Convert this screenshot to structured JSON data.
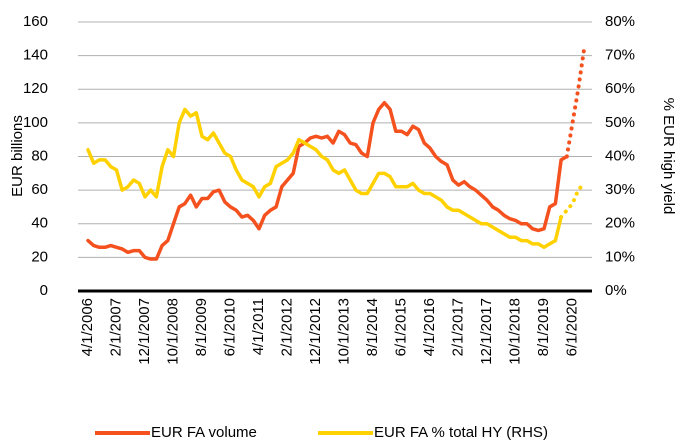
{
  "chart_data": {
    "type": "line",
    "y_label": "EUR billions",
    "y2_label": "% EUR high yield",
    "categories": [
      "4/1/2006",
      null,
      null,
      null,
      null,
      "2/1/2007",
      null,
      null,
      null,
      null,
      "12/1/2007",
      null,
      null,
      null,
      null,
      "10/1/2008",
      null,
      null,
      null,
      null,
      "8/1/2009",
      null,
      null,
      null,
      null,
      "6/1/2010",
      null,
      null,
      null,
      null,
      "4/1/2011",
      null,
      null,
      null,
      null,
      "2/1/2012",
      null,
      null,
      null,
      null,
      "12/1/2012",
      null,
      null,
      null,
      null,
      "10/1/2013",
      null,
      null,
      null,
      null,
      "8/1/2014",
      null,
      null,
      null,
      null,
      "6/1/2015",
      null,
      null,
      null,
      null,
      "4/1/2016",
      null,
      null,
      null,
      null,
      "2/1/2017",
      null,
      null,
      null,
      null,
      "12/1/2017",
      null,
      null,
      null,
      null,
      "10/1/2018",
      null,
      null,
      null,
      null,
      "8/1/2019",
      null,
      null,
      null,
      null,
      "6/1/2020",
      null,
      null
    ],
    "series": [
      {
        "name": "EUR FA volume",
        "color": "#f4511e",
        "dotted_from": 84,
        "values": [
          30,
          27,
          26,
          26,
          27,
          26,
          25,
          23,
          24,
          24,
          20,
          19,
          19,
          27,
          30,
          40,
          50,
          52,
          57,
          50,
          55,
          55,
          59,
          60,
          53,
          50,
          48,
          44,
          45,
          42,
          37,
          45,
          48,
          50,
          62,
          66,
          70,
          86,
          88,
          91,
          92,
          91,
          92,
          88,
          95,
          93,
          88,
          87,
          82,
          80,
          100,
          108,
          112,
          108,
          95,
          95,
          93,
          98,
          96,
          88,
          85,
          80,
          77,
          75,
          66,
          63,
          65,
          62,
          60,
          57,
          54,
          50,
          48,
          45,
          43,
          42,
          40,
          40,
          37,
          36,
          37,
          50,
          52,
          78,
          80,
          100,
          120,
          143
        ]
      },
      {
        "name": "EUR FA % total HY (RHS)",
        "color": "#ffd100",
        "axis": "y2",
        "dotted_from": 83,
        "values": [
          42,
          38,
          39,
          39,
          37,
          36,
          30,
          31,
          33,
          32,
          28,
          30,
          28,
          37,
          42,
          40,
          50,
          54,
          52,
          53,
          46,
          45,
          47,
          44,
          41,
          40,
          36,
          33,
          32,
          31,
          28,
          31,
          32,
          37,
          38,
          39,
          41,
          45,
          44,
          43,
          42,
          40,
          39,
          36,
          35,
          36,
          33,
          30,
          29,
          29,
          32,
          35,
          35,
          34,
          31,
          31,
          31,
          32,
          30,
          29,
          29,
          28,
          27,
          25,
          24,
          24,
          23,
          22,
          21,
          20,
          20,
          19,
          18,
          17,
          16,
          16,
          15,
          15,
          14,
          14,
          13,
          14,
          15,
          22,
          24,
          26,
          30,
          32
        ]
      }
    ],
    "ylim": [
      0,
      160
    ],
    "yticks": [
      0,
      20,
      40,
      60,
      80,
      100,
      120,
      140,
      160
    ],
    "y2lim": [
      0,
      80
    ],
    "y2ticks": [
      {
        "value": 0,
        "label": "0%"
      },
      {
        "value": 10,
        "label": "10%"
      },
      {
        "value": 20,
        "label": "20%"
      },
      {
        "value": 30,
        "label": "30%"
      },
      {
        "value": 40,
        "label": "40%"
      },
      {
        "value": 50,
        "label": "50%"
      },
      {
        "value": 60,
        "label": "60%"
      },
      {
        "value": 70,
        "label": "70%"
      },
      {
        "value": 80,
        "label": "80%"
      }
    ],
    "grid": true,
    "legend": "bottom"
  }
}
